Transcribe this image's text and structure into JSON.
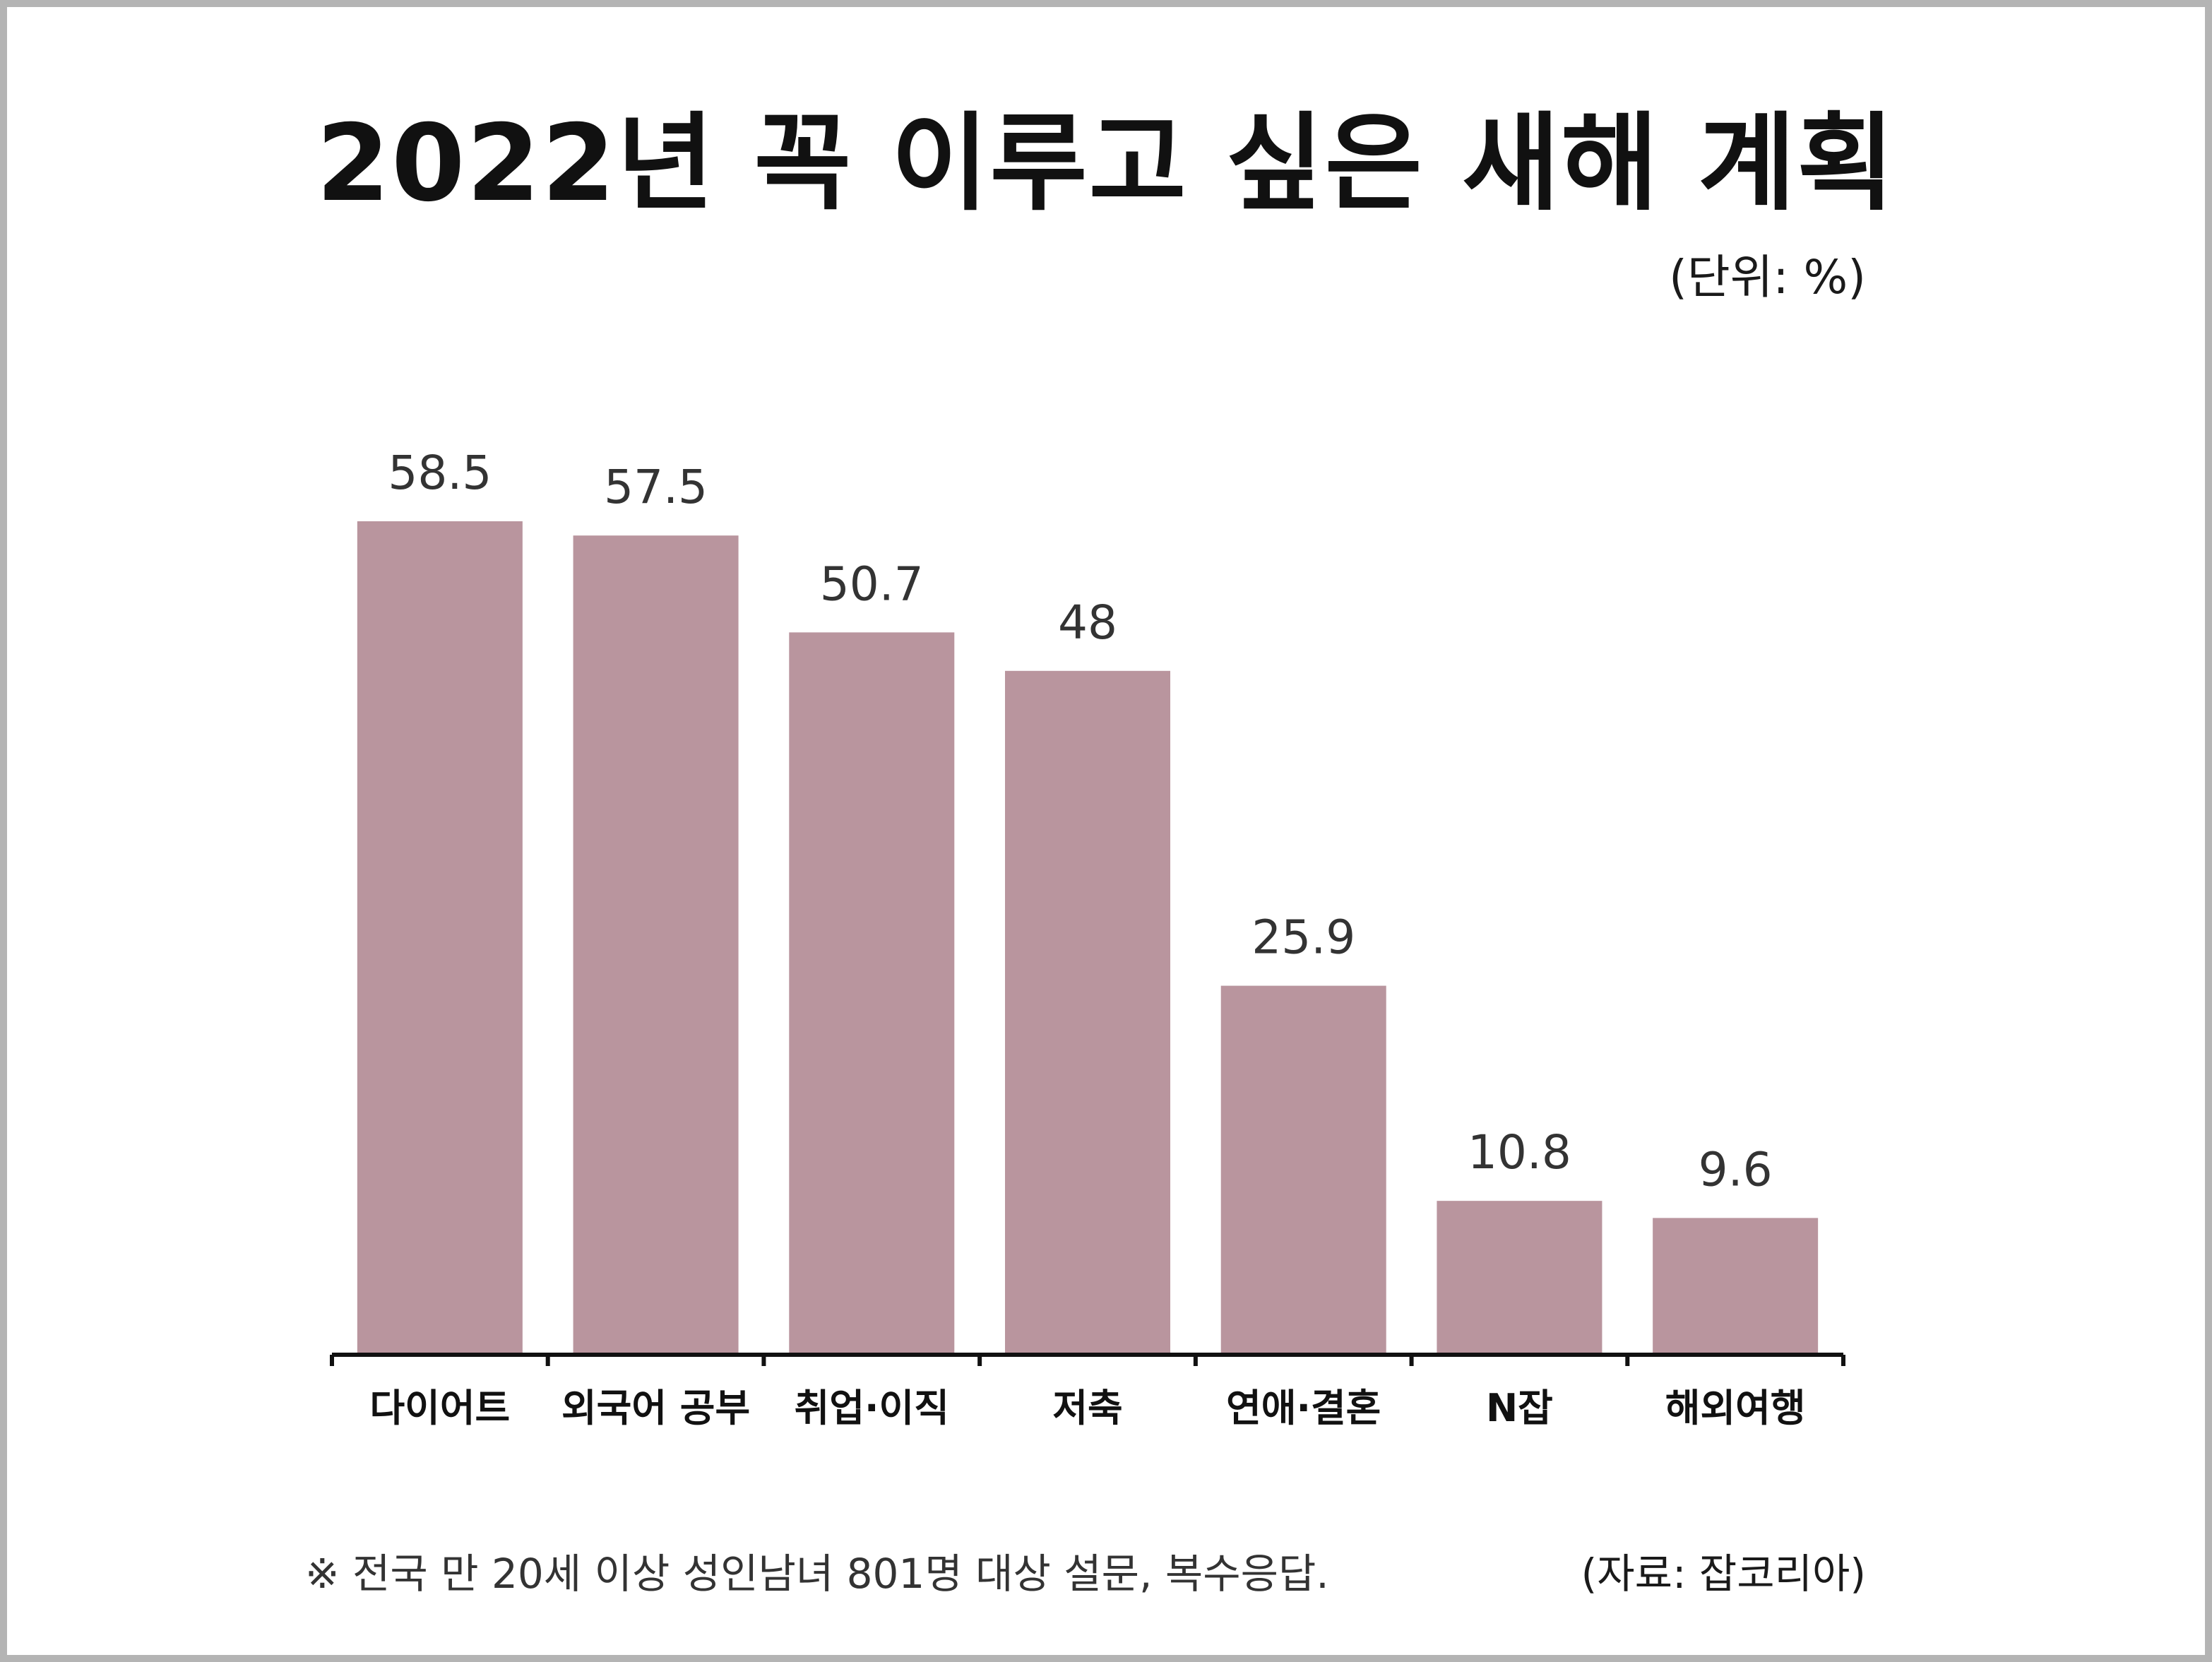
{
  "header": {
    "title": "2022년 꼭 이루고 싶은 새해 계획",
    "unit": "(단위: %)"
  },
  "footer": {
    "note": "※ 전국 만 20세 이상 성인남녀 801명 대상 설문, 복수응답.",
    "source": "(자료: 잡코리아)"
  },
  "colors": {
    "bar": "#b9959e",
    "axis": "#111111",
    "value_label": "#333333",
    "category_label": "#111111"
  },
  "chart_data": {
    "type": "bar",
    "title": "2022년 꼭 이루고 싶은 새해 계획",
    "unit": "(단위: %)",
    "categories": [
      "다이어트",
      "외국어 공부",
      "취업·이직",
      "저축",
      "연애·결혼",
      "N잡",
      "해외여행"
    ],
    "values": [
      58.5,
      57.5,
      50.7,
      48,
      25.9,
      10.8,
      9.6
    ],
    "value_labels": [
      "58.5",
      "57.5",
      "50.7",
      "48",
      "25.9",
      "10.8",
      "9.6"
    ],
    "ylim": [
      0,
      58.5
    ],
    "grid": false,
    "legend": "none",
    "xlabel": "",
    "ylabel": ""
  }
}
